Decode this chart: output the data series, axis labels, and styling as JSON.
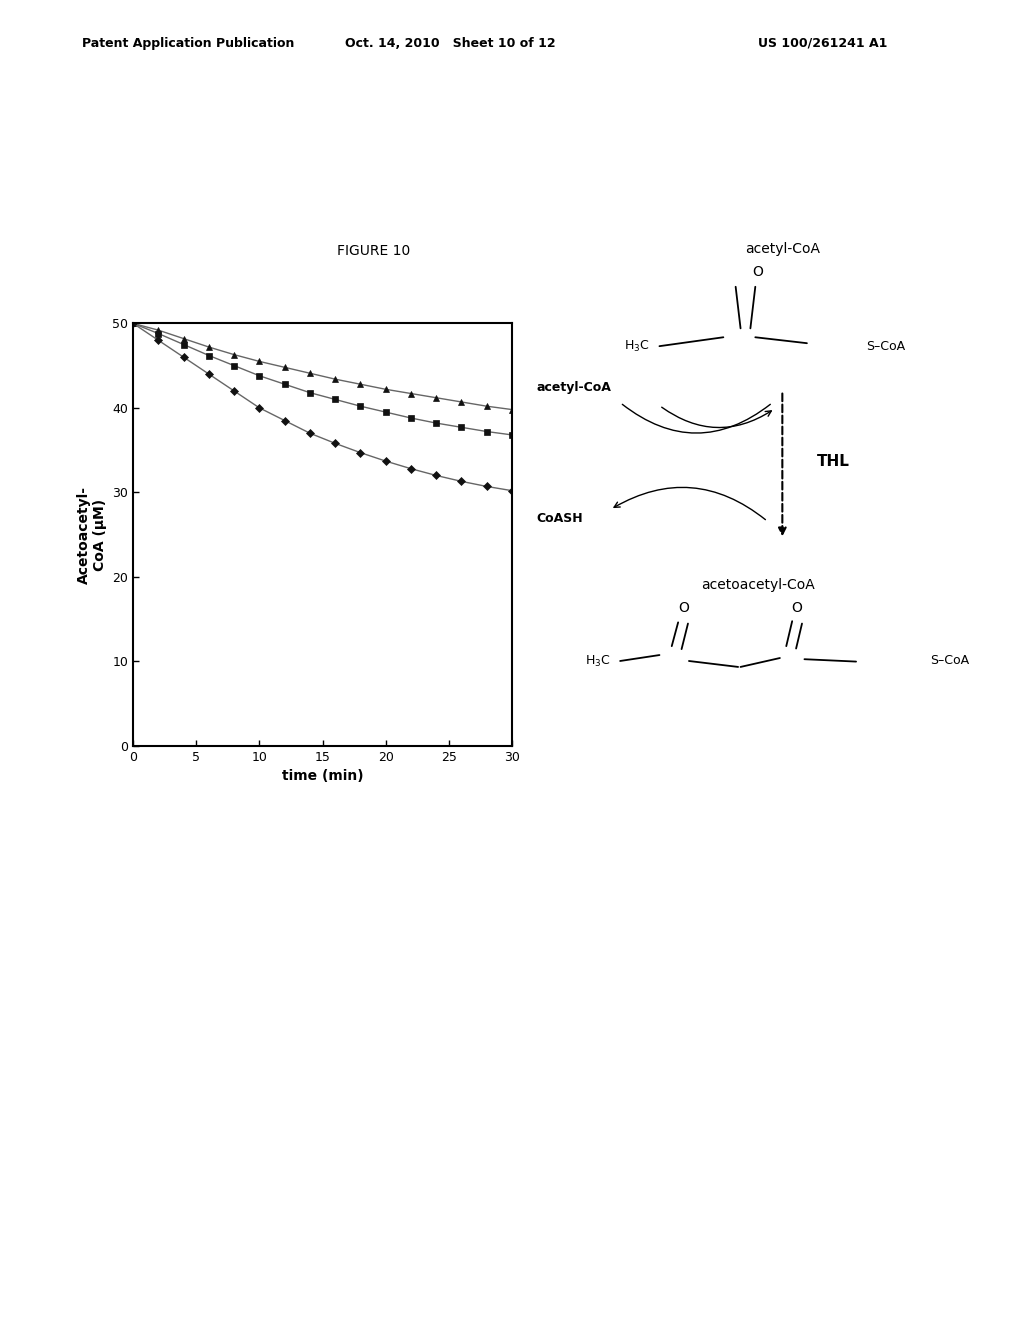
{
  "figure_title": "FIGURE 10",
  "header_left": "Patent Application Publication",
  "header_center": "Oct. 14, 2010  Sheet 10 of 12",
  "header_right": "US 100/261241 A1",
  "ylabel": "Acetoacetyl-\nCoA (μM)",
  "xlabel": "time (min)",
  "xlim": [
    0,
    30
  ],
  "ylim": [
    0,
    50
  ],
  "xticks": [
    0,
    5,
    10,
    15,
    20,
    25,
    30
  ],
  "yticks": [
    0,
    10,
    20,
    30,
    40,
    50
  ],
  "time_points": [
    0,
    2,
    4,
    6,
    8,
    10,
    12,
    14,
    16,
    18,
    20,
    22,
    24,
    26,
    28,
    30
  ],
  "series_triangle": [
    50,
    49.2,
    48.2,
    47.2,
    46.3,
    45.5,
    44.8,
    44.1,
    43.4,
    42.8,
    42.2,
    41.7,
    41.2,
    40.7,
    40.2,
    39.8
  ],
  "series_square": [
    50,
    48.8,
    47.5,
    46.2,
    45.0,
    43.8,
    42.8,
    41.8,
    41.0,
    40.2,
    39.5,
    38.8,
    38.2,
    37.7,
    37.2,
    36.8
  ],
  "series_diamond": [
    50,
    48.0,
    46.0,
    44.0,
    42.0,
    40.0,
    38.5,
    37.0,
    35.8,
    34.7,
    33.7,
    32.8,
    32.0,
    31.3,
    30.7,
    30.2
  ],
  "line_color": "#666666",
  "marker_color": "#111111",
  "background_color": "#ffffff",
  "title_fontsize": 10,
  "axis_fontsize": 10,
  "tick_fontsize": 9
}
